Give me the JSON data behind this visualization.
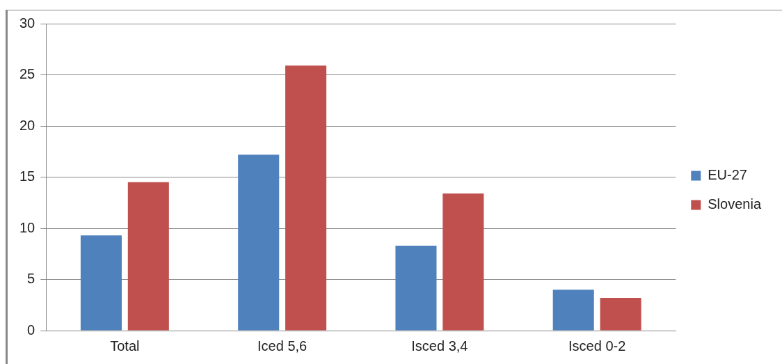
{
  "chart_data": {
    "type": "bar",
    "categories": [
      "Total",
      "Iced 5,6",
      "Isced 3,4",
      "Isced 0-2"
    ],
    "series": [
      {
        "name": "EU-27",
        "color": "#4f81bd",
        "values": [
          9.3,
          17.2,
          8.3,
          4.0
        ]
      },
      {
        "name": "Slovenia",
        "color": "#c0504d",
        "values": [
          14.5,
          25.9,
          13.4,
          3.2
        ]
      }
    ],
    "ylim": [
      0,
      30
    ],
    "yticks": [
      0,
      5,
      10,
      15,
      20,
      25,
      30
    ],
    "grid": "y",
    "legend": "right"
  }
}
